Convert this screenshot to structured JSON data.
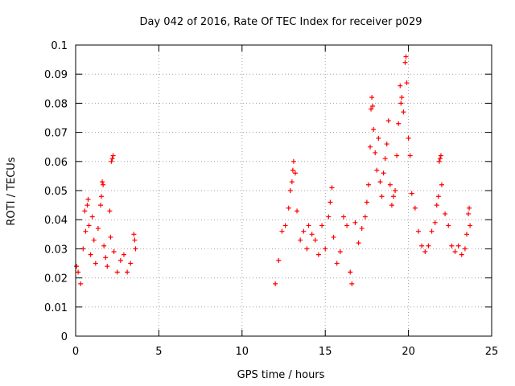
{
  "chart_data": {
    "type": "scatter",
    "title": "Day 042 of 2016, Rate Of TEC Index for receiver p029",
    "xlabel": "GPS time / hours",
    "ylabel": "ROTI / TECUs",
    "xlim": [
      0,
      25
    ],
    "ylim": [
      0,
      0.1
    ],
    "x_ticks": [
      "0",
      "5",
      "10",
      "15",
      "20",
      "25"
    ],
    "y_ticks": [
      "0",
      "0.01",
      "0.02",
      "0.03",
      "0.04",
      "0.05",
      "0.06",
      "0.07",
      "0.08",
      "0.09",
      "0.1"
    ],
    "grid": true,
    "marker": "+",
    "color": "#ff0000",
    "series": [
      {
        "points": [
          [
            0.05,
            0.024
          ],
          [
            0.15,
            0.022
          ],
          [
            0.3,
            0.018
          ],
          [
            0.45,
            0.03
          ],
          [
            0.55,
            0.043
          ],
          [
            0.6,
            0.036
          ],
          [
            0.7,
            0.045
          ],
          [
            0.75,
            0.047
          ],
          [
            0.8,
            0.038
          ],
          [
            0.9,
            0.028
          ],
          [
            1.0,
            0.041
          ],
          [
            1.1,
            0.033
          ],
          [
            1.2,
            0.025
          ],
          [
            1.35,
            0.037
          ],
          [
            1.5,
            0.045
          ],
          [
            1.55,
            0.048
          ],
          [
            1.6,
            0.053
          ],
          [
            1.65,
            0.052
          ],
          [
            1.7,
            0.031
          ],
          [
            1.8,
            0.027
          ],
          [
            1.9,
            0.024
          ],
          [
            2.05,
            0.043
          ],
          [
            2.1,
            0.034
          ],
          [
            2.15,
            0.06
          ],
          [
            2.2,
            0.061
          ],
          [
            2.25,
            0.062
          ],
          [
            2.3,
            0.029
          ],
          [
            2.5,
            0.022
          ],
          [
            2.7,
            0.026
          ],
          [
            2.9,
            0.028
          ],
          [
            3.1,
            0.022
          ],
          [
            3.3,
            0.025
          ],
          [
            3.5,
            0.035
          ],
          [
            3.55,
            0.033
          ],
          [
            3.6,
            0.03
          ],
          [
            12.0,
            0.018
          ],
          [
            12.2,
            0.026
          ],
          [
            12.4,
            0.036
          ],
          [
            12.6,
            0.038
          ],
          [
            12.8,
            0.044
          ],
          [
            12.9,
            0.05
          ],
          [
            13.0,
            0.053
          ],
          [
            13.05,
            0.057
          ],
          [
            13.1,
            0.06
          ],
          [
            13.2,
            0.056
          ],
          [
            13.3,
            0.043
          ],
          [
            13.5,
            0.033
          ],
          [
            13.7,
            0.036
          ],
          [
            13.9,
            0.03
          ],
          [
            14.0,
            0.038
          ],
          [
            14.2,
            0.035
          ],
          [
            14.4,
            0.033
          ],
          [
            14.6,
            0.028
          ],
          [
            14.8,
            0.038
          ],
          [
            15.0,
            0.03
          ],
          [
            15.2,
            0.041
          ],
          [
            15.3,
            0.046
          ],
          [
            15.4,
            0.051
          ],
          [
            15.5,
            0.034
          ],
          [
            15.7,
            0.025
          ],
          [
            15.9,
            0.029
          ],
          [
            16.1,
            0.041
          ],
          [
            16.3,
            0.038
          ],
          [
            16.5,
            0.022
          ],
          [
            16.6,
            0.018
          ],
          [
            16.8,
            0.039
          ],
          [
            17.0,
            0.032
          ],
          [
            17.2,
            0.037
          ],
          [
            17.4,
            0.041
          ],
          [
            17.5,
            0.046
          ],
          [
            17.6,
            0.052
          ],
          [
            17.7,
            0.065
          ],
          [
            17.75,
            0.078
          ],
          [
            17.8,
            0.082
          ],
          [
            17.85,
            0.079
          ],
          [
            17.9,
            0.071
          ],
          [
            18.0,
            0.063
          ],
          [
            18.1,
            0.057
          ],
          [
            18.2,
            0.068
          ],
          [
            18.3,
            0.053
          ],
          [
            18.4,
            0.048
          ],
          [
            18.5,
            0.056
          ],
          [
            18.6,
            0.061
          ],
          [
            18.7,
            0.066
          ],
          [
            18.8,
            0.074
          ],
          [
            18.9,
            0.052
          ],
          [
            19.0,
            0.045
          ],
          [
            19.1,
            0.048
          ],
          [
            19.2,
            0.05
          ],
          [
            19.3,
            0.062
          ],
          [
            19.4,
            0.073
          ],
          [
            19.5,
            0.086
          ],
          [
            19.55,
            0.08
          ],
          [
            19.6,
            0.082
          ],
          [
            19.7,
            0.077
          ],
          [
            19.8,
            0.094
          ],
          [
            19.85,
            0.096
          ],
          [
            19.9,
            0.087
          ],
          [
            20.0,
            0.068
          ],
          [
            20.1,
            0.062
          ],
          [
            20.2,
            0.049
          ],
          [
            20.4,
            0.044
          ],
          [
            20.6,
            0.036
          ],
          [
            20.8,
            0.031
          ],
          [
            21.0,
            0.029
          ],
          [
            21.2,
            0.031
          ],
          [
            21.4,
            0.036
          ],
          [
            21.6,
            0.039
          ],
          [
            21.7,
            0.045
          ],
          [
            21.8,
            0.048
          ],
          [
            21.85,
            0.06
          ],
          [
            21.9,
            0.061
          ],
          [
            21.95,
            0.062
          ],
          [
            22.0,
            0.052
          ],
          [
            22.2,
            0.042
          ],
          [
            22.4,
            0.038
          ],
          [
            22.6,
            0.031
          ],
          [
            22.8,
            0.029
          ],
          [
            23.0,
            0.031
          ],
          [
            23.2,
            0.028
          ],
          [
            23.4,
            0.03
          ],
          [
            23.5,
            0.035
          ],
          [
            23.6,
            0.042
          ],
          [
            23.65,
            0.044
          ],
          [
            23.7,
            0.038
          ]
        ]
      }
    ]
  }
}
